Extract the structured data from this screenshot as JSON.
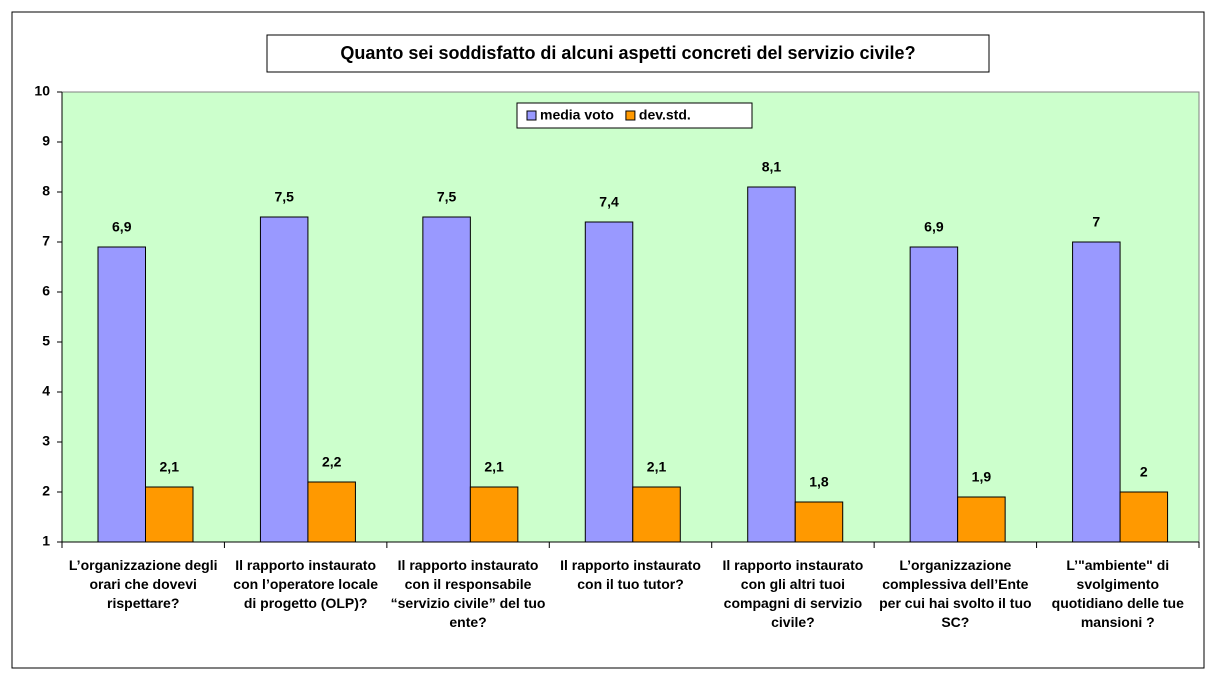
{
  "chart_data": {
    "type": "bar",
    "title": "Quanto sei soddisfatto di alcuni aspetti concreti del servizio civile?",
    "categories": [
      "L’organizzazione degli orari che dovevi rispettare?",
      "Il rapporto instaurato con l’operatore locale di progetto (OLP)?",
      "Il rapporto instaurato con il responsabile “servizio civile” del tuo ente?",
      "Il rapporto instaurato con il tuo tutor?",
      "Il rapporto instaurato con gli altri tuoi compagni di servizio civile?",
      "L’organizzazione complessiva dell’Ente per cui hai svolto il tuo SC?",
      "L’\"ambiente\" di svolgimento quotidiano delle tue mansioni ?"
    ],
    "series": [
      {
        "name": "media voto",
        "color": "#9999ff",
        "values": [
          6.9,
          7.5,
          7.5,
          7.4,
          8.1,
          6.9,
          7
        ],
        "value_labels": [
          "6,9",
          "7,5",
          "7,5",
          "7,4",
          "8,1",
          "6,9",
          "7"
        ]
      },
      {
        "name": "dev.std.",
        "color": "#ff9900",
        "values": [
          2.1,
          2.2,
          2.1,
          2.1,
          1.8,
          1.9,
          2
        ],
        "value_labels": [
          "2,1",
          "2,2",
          "2,1",
          "2,1",
          "1,8",
          "1,9",
          "2"
        ]
      }
    ],
    "ylim": [
      1,
      10
    ],
    "yticks": [
      1,
      2,
      3,
      4,
      5,
      6,
      7,
      8,
      9,
      10
    ],
    "legend": "top",
    "plot_background": "#ccffcc"
  }
}
